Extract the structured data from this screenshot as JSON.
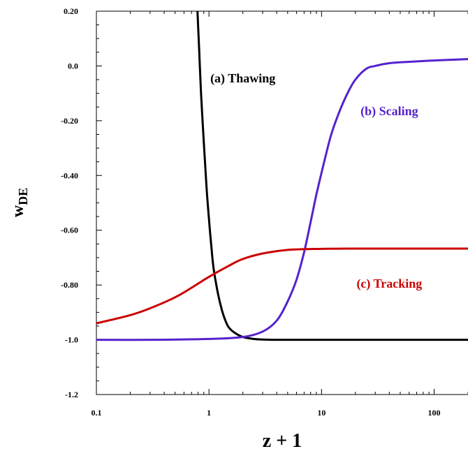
{
  "chart_data": {
    "type": "line",
    "xlabel": "z + 1",
    "ylabel_main": "w",
    "ylabel_sub": "DE",
    "xscale": "log",
    "xlim": [
      0.1,
      200
    ],
    "ylim": [
      -1.2,
      0.2
    ],
    "grid": false,
    "x_ticks": [
      {
        "value": 0.1,
        "label": "0.1"
      },
      {
        "value": 1,
        "label": "1"
      },
      {
        "value": 10,
        "label": "10"
      },
      {
        "value": 100,
        "label": "100"
      }
    ],
    "y_ticks": [
      {
        "value": 0.2,
        "label": "0.20"
      },
      {
        "value": 0.0,
        "label": "0.0"
      },
      {
        "value": -0.2,
        "label": "-0.20"
      },
      {
        "value": -0.4,
        "label": "-0.40"
      },
      {
        "value": -0.6,
        "label": "-0.60"
      },
      {
        "value": -0.8,
        "label": "-0.80"
      },
      {
        "value": -1.0,
        "label": "-1.0"
      },
      {
        "value": -1.2,
        "label": "-1.2"
      }
    ],
    "series": [
      {
        "name": "(a) Thawing",
        "color": "#000000",
        "x": [
          0.79,
          0.82,
          0.85,
          0.9,
          0.95,
          1.0,
          1.05,
          1.1,
          1.2,
          1.3,
          1.4,
          1.5,
          1.7,
          2.0,
          2.5,
          3.0,
          4.0,
          6.0,
          10,
          20,
          50,
          100,
          200
        ],
        "y": [
          0.2,
          0.05,
          -0.1,
          -0.28,
          -0.44,
          -0.56,
          -0.66,
          -0.74,
          -0.83,
          -0.89,
          -0.93,
          -0.955,
          -0.975,
          -0.99,
          -0.997,
          -0.999,
          -1.0,
          -1.0,
          -1.0,
          -1.0,
          -1.0,
          -1.0,
          -1.0
        ]
      },
      {
        "name": "(b) Scaling",
        "color": "#5522cc",
        "x": [
          0.1,
          0.3,
          1,
          2,
          3,
          4,
          5,
          6,
          7,
          8,
          9,
          10,
          12,
          14,
          17,
          20,
          25,
          30,
          40,
          60,
          100,
          200
        ],
        "y": [
          -1.0,
          -1.0,
          -0.997,
          -0.99,
          -0.97,
          -0.93,
          -0.86,
          -0.78,
          -0.68,
          -0.57,
          -0.47,
          -0.39,
          -0.26,
          -0.18,
          -0.1,
          -0.05,
          -0.01,
          0.0,
          0.01,
          0.015,
          0.02,
          0.025
        ]
      },
      {
        "name": "(c) Tracking",
        "color": "#cc0000",
        "x": [
          0.1,
          0.2,
          0.3,
          0.5,
          0.7,
          1.0,
          1.5,
          2.0,
          3.0,
          5.0,
          10,
          20,
          50,
          100,
          200
        ],
        "y": [
          -0.94,
          -0.91,
          -0.885,
          -0.845,
          -0.81,
          -0.77,
          -0.73,
          -0.705,
          -0.685,
          -0.672,
          -0.668,
          -0.667,
          -0.667,
          -0.667,
          -0.667
        ]
      }
    ],
    "annotations": [
      {
        "text": "(a) Thawing",
        "x": 2.0,
        "y": -0.06,
        "color": "#000000"
      },
      {
        "text": "(b) Scaling",
        "x": 40,
        "y": -0.18,
        "color": "#5522cc"
      },
      {
        "text": "(c) Tracking",
        "x": 40,
        "y": -0.81,
        "color": "#cc0000"
      }
    ]
  }
}
